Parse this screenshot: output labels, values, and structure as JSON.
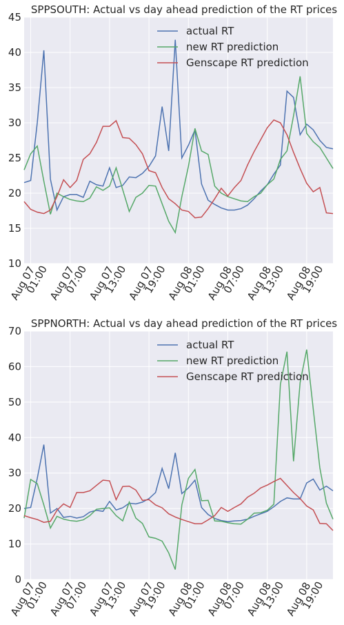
{
  "chart_data": [
    {
      "type": "line",
      "title": "SPPSOUTH: Actual vs day ahead prediction of the RT prices",
      "categories": [
        null,
        "Aug 07 01:00",
        null,
        null,
        null,
        null,
        null,
        "Aug 07 07:00",
        null,
        null,
        null,
        null,
        null,
        "Aug 07 13:00",
        null,
        null,
        null,
        null,
        null,
        "Aug 07 19:00",
        null,
        null,
        null,
        null,
        null,
        "Aug 08 01:00",
        null,
        null,
        null,
        null,
        null,
        "Aug 08 07:00",
        null,
        null,
        null,
        null,
        null,
        "Aug 08 13:00",
        null,
        null,
        null,
        null,
        null,
        "Aug 08 19:00",
        null,
        null,
        null,
        null
      ],
      "series": [
        {
          "name": "actual RT",
          "color": "#4c72b0",
          "values": [
            21.5,
            21.8,
            30,
            40.3,
            22,
            17.6,
            19.5,
            19.8,
            19.8,
            19.4,
            21.7,
            21.2,
            21.0,
            23.6,
            20.8,
            21.1,
            22.3,
            22.2,
            22.8,
            23.8,
            25.3,
            32.3,
            26.0,
            41.8,
            25.0,
            26.8,
            29.0,
            21.3,
            19.0,
            18.4,
            17.9,
            17.6,
            17.6,
            17.8,
            18.3,
            19.2,
            20.3,
            21.2,
            22.7,
            24.0,
            34.5,
            33.6,
            28.3,
            29.8,
            29.0,
            27.5,
            26.5,
            26.3
          ]
        },
        {
          "name": "new RT prediction",
          "color": "#55a868",
          "values": [
            23.3,
            25.6,
            26.7,
            21.7,
            17.0,
            20.0,
            19.5,
            19.1,
            18.9,
            18.8,
            19.3,
            20.9,
            20.4,
            21.0,
            23.6,
            20.5,
            17.4,
            19.4,
            20.0,
            21.1,
            21.0,
            18.5,
            16.0,
            14.4,
            19.5,
            23.8,
            29.2,
            26.0,
            25.5,
            21.0,
            20.0,
            19.5,
            19.2,
            18.9,
            18.8,
            19.5,
            20.0,
            21.2,
            22.0,
            24.8,
            26.0,
            31.0,
            36.6,
            28.5,
            27.3,
            26.5,
            25.0,
            23.5
          ]
        },
        {
          "name": "Genscape RT prediction",
          "color": "#c44e52",
          "values": [
            18.8,
            17.7,
            17.3,
            17.1,
            17.6,
            19.5,
            21.9,
            20.8,
            21.8,
            24.8,
            25.6,
            27.2,
            29.5,
            29.5,
            30.3,
            27.9,
            27.8,
            26.9,
            25.6,
            23.2,
            22.9,
            20.8,
            19.2,
            18.5,
            17.6,
            17.4,
            16.5,
            16.6,
            17.8,
            19.2,
            20.7,
            19.6,
            20.8,
            21.8,
            24.0,
            25.9,
            27.6,
            29.3,
            30.4,
            30.0,
            28.3,
            25.8,
            23.5,
            21.4,
            20.2,
            20.8,
            17.2,
            17.1
          ]
        }
      ],
      "ylim": [
        10,
        45
      ],
      "yticks": [
        10,
        15,
        20,
        25,
        30,
        35,
        40,
        45
      ],
      "grid": true,
      "legend": "upper right"
    },
    {
      "type": "line",
      "title": "SPPNORTH: Actual vs day ahead prediction of the RT prices",
      "categories": [
        null,
        "Aug 07 01:00",
        null,
        null,
        null,
        null,
        null,
        "Aug 07 07:00",
        null,
        null,
        null,
        null,
        null,
        "Aug 07 13:00",
        null,
        null,
        null,
        null,
        null,
        "Aug 07 19:00",
        null,
        null,
        null,
        null,
        null,
        "Aug 08 01:00",
        null,
        null,
        null,
        null,
        null,
        "Aug 08 07:00",
        null,
        null,
        null,
        null,
        null,
        "Aug 08 13:00",
        null,
        null,
        null,
        null,
        null,
        "Aug 08 19:00",
        null,
        null,
        null,
        null
      ],
      "series": [
        {
          "name": "actual RT",
          "color": "#4c72b0",
          "values": [
            20,
            20.3,
            28.5,
            38.0,
            18.7,
            20,
            17.5,
            17.8,
            17.3,
            17.7,
            19.0,
            19.5,
            19.2,
            22.0,
            19.6,
            20.2,
            21.5,
            21.3,
            21.8,
            22.8,
            24.5,
            31.3,
            25.6,
            35.7,
            24.2,
            25.8,
            28.0,
            20.3,
            18.3,
            17.2,
            16.6,
            16.3,
            16.5,
            16.6,
            17.0,
            17.8,
            18.5,
            19.2,
            20.5,
            22.0,
            23.0,
            22.7,
            22.7,
            27.2,
            28.3,
            25.2,
            26.3,
            25.0
          ]
        },
        {
          "name": "new RT prediction",
          "color": "#55a868",
          "values": [
            17.3,
            28.2,
            27.0,
            21.0,
            14.5,
            17.8,
            17.0,
            16.6,
            16.4,
            16.8,
            18.0,
            19.8,
            20.0,
            20.2,
            18.0,
            16.5,
            21.8,
            17.3,
            15.8,
            12.0,
            11.6,
            10.8,
            7.5,
            2.8,
            21.0,
            28.5,
            31.0,
            22.2,
            22.3,
            16.5,
            16.4,
            16.0,
            15.7,
            15.6,
            17.0,
            18.7,
            18.8,
            19.5,
            21.2,
            55.0,
            64.2,
            33.3,
            55.5,
            64.8,
            48.0,
            31.5,
            21.5,
            17.0
          ]
        },
        {
          "name": "Genscape RT prediction",
          "color": "#c44e52",
          "values": [
            18.0,
            17.4,
            16.9,
            16.1,
            16.4,
            19.5,
            21.3,
            20.3,
            24.5,
            24.5,
            25.0,
            26.5,
            28.0,
            27.8,
            22.5,
            26.2,
            26.3,
            25.2,
            22.3,
            22.5,
            21.0,
            20.2,
            18.5,
            17.6,
            16.9,
            16.3,
            15.7,
            15.7,
            16.8,
            18.0,
            20.3,
            19.2,
            20.3,
            21.3,
            23.2,
            24.3,
            25.8,
            26.6,
            27.6,
            28.5,
            26.5,
            24.5,
            22.8,
            20.7,
            19.6,
            15.8,
            15.7,
            13.8
          ]
        }
      ],
      "ylim": [
        0,
        70
      ],
      "yticks": [
        0,
        10,
        20,
        30,
        40,
        50,
        60,
        70
      ],
      "grid": true,
      "legend": "upper right"
    }
  ]
}
